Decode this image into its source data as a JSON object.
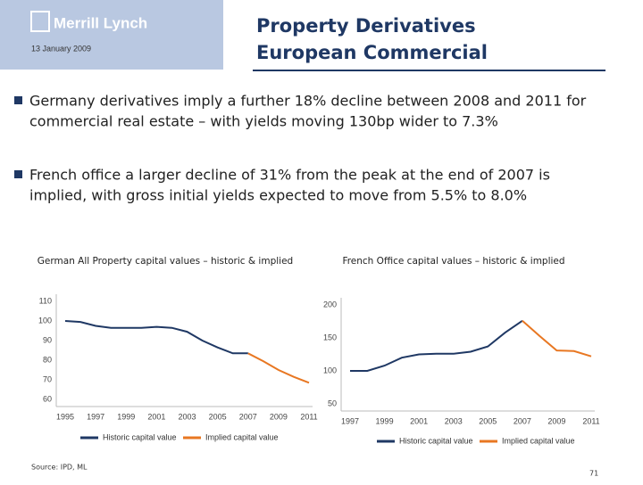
{
  "header": {
    "logo": "Merrill Lynch",
    "date": "13 January 2009",
    "title_lines": [
      "Property Derivatives",
      "European Commercial"
    ]
  },
  "bullets": [
    [
      "Germany derivatives imply a further 18% decline between 2008 and 2011 for",
      "commercial real estate – with yields moving 130bp wider to 7.3%"
    ],
    [
      "French office a larger decline of 31% from the peak at the end of 2007 is",
      "implied, with gross initial yields expected to move from 5.5% to 8.0%"
    ]
  ],
  "chart_data": [
    {
      "type": "line",
      "title": "German All Property capital values – historic & implied",
      "x": [
        1995,
        1996,
        1997,
        1998,
        1999,
        2000,
        2001,
        2002,
        2003,
        2004,
        2005,
        2006,
        2007,
        2008,
        2009,
        2010,
        2011
      ],
      "series": [
        {
          "name": "Historic capital value",
          "color": "#1f3864",
          "values": [
            100,
            99.5,
            97.5,
            96.5,
            96.5,
            96.5,
            97,
            96.5,
            94.5,
            90,
            86.5,
            83.5,
            83.5,
            null,
            null,
            null,
            null
          ]
        },
        {
          "name": "Implied capital value",
          "color": "#e87722",
          "values": [
            null,
            null,
            null,
            null,
            null,
            null,
            null,
            null,
            null,
            null,
            null,
            null,
            83.5,
            79.5,
            75,
            71.5,
            68.5
          ]
        }
      ],
      "xlim": [
        1995,
        2011
      ],
      "xticks": [
        1995,
        1997,
        1999,
        2001,
        2003,
        2005,
        2007,
        2009,
        2011
      ],
      "ylim": [
        60,
        110
      ],
      "yticks": [
        60,
        70,
        80,
        90,
        100,
        110
      ],
      "legend": "bottom"
    },
    {
      "type": "line",
      "title": "French Office capital values – historic & implied",
      "x": [
        1997,
        1998,
        1999,
        2000,
        2001,
        2002,
        2003,
        2004,
        2005,
        2006,
        2007,
        2008,
        2009,
        2010,
        2011
      ],
      "series": [
        {
          "name": "Historic capital value",
          "color": "#1f3864",
          "values": [
            100,
            100,
            108,
            120,
            125,
            126,
            126,
            129,
            137,
            158,
            176,
            null,
            null,
            null,
            null
          ]
        },
        {
          "name": "Implied capital value",
          "color": "#e87722",
          "values": [
            null,
            null,
            null,
            null,
            null,
            null,
            null,
            null,
            null,
            null,
            176,
            153,
            131,
            130,
            122
          ]
        }
      ],
      "xlim": [
        1997,
        2011
      ],
      "xticks": [
        1997,
        1999,
        2001,
        2003,
        2005,
        2007,
        2009,
        2011
      ],
      "ylim": [
        50,
        200
      ],
      "yticks": [
        50,
        100,
        150,
        200
      ],
      "legend": "bottom"
    }
  ],
  "source": "Source: IPD, ML",
  "page_number": "71"
}
